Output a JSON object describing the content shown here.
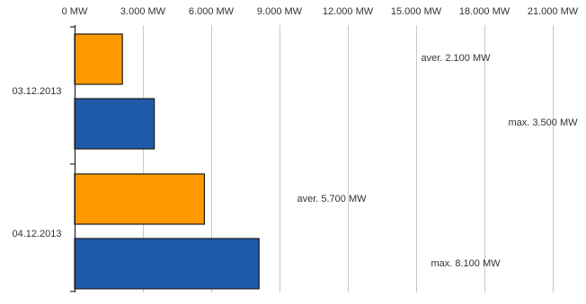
{
  "chart_data": {
    "type": "bar",
    "orientation": "horizontal",
    "categories": [
      "03.12.2013",
      "04.12.2013"
    ],
    "series": [
      {
        "key": "aver",
        "color": "#ff9900",
        "values": [
          2100,
          5700
        ]
      },
      {
        "key": "max",
        "color": "#1f5aa8",
        "values": [
          3500,
          8100
        ]
      }
    ],
    "xlim": [
      0,
      22500
    ],
    "xticks": [
      0,
      3000,
      6000,
      9000,
      12000,
      15000,
      18000,
      21000
    ],
    "xtick_labels": [
      "0 MW",
      "3.000 MW",
      "6.000 MW",
      "9.000 MW",
      "12.000 MW",
      "15.000 MW",
      "18.000 MW",
      "21.000 MW"
    ],
    "grid": true,
    "legend": "none",
    "annotations": [
      {
        "category": "03.12.2013",
        "series": "aver",
        "text": "aver. 2.100 MW"
      },
      {
        "category": "03.12.2013",
        "series": "max",
        "text": "max. 3.500 MW"
      },
      {
        "category": "04.12.2013",
        "series": "aver",
        "text": "aver. 5.700 MW"
      },
      {
        "category": "04.12.2013",
        "series": "max",
        "text": "max. 8.100 MW"
      }
    ]
  }
}
